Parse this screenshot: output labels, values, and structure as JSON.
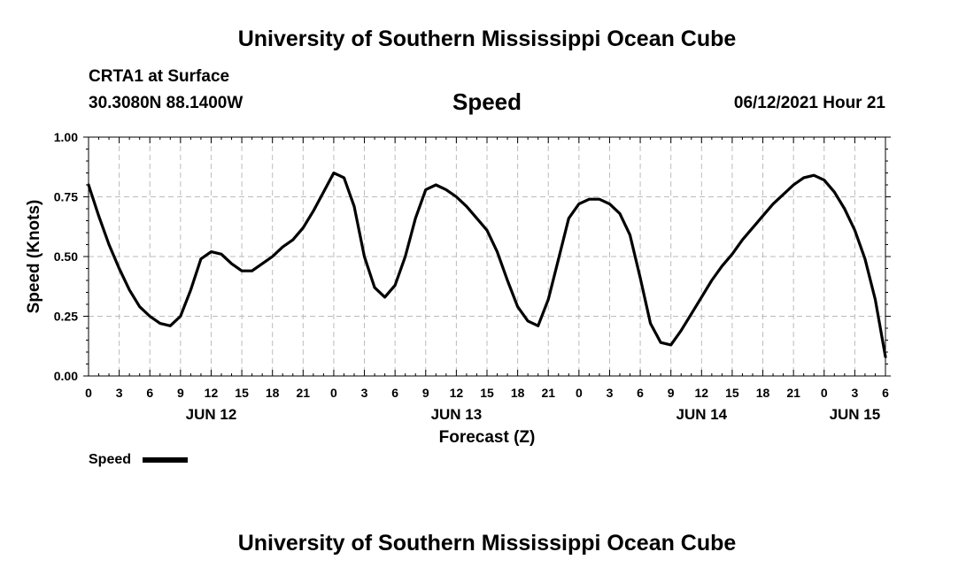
{
  "header": {
    "title": "University of Southern Mississippi Ocean Cube",
    "station": "CRTA1 at Surface",
    "coordinates": "30.3080N  88.1400W",
    "timestamp": "06/12/2021 Hour 21"
  },
  "footer": {
    "title": "University of Southern Mississippi Ocean Cube"
  },
  "chart_data": {
    "type": "line",
    "title": "Speed",
    "xlabel": "Forecast (Z)",
    "ylabel": "Speed (Knots)",
    "x_unit": "hours from 2021-06-12 00Z",
    "xlim": [
      0,
      78
    ],
    "ylim": [
      0,
      1
    ],
    "y_ticks": [
      "0.00",
      "0.25",
      "0.50",
      "0.75",
      "1.00"
    ],
    "y_tick_values": [
      0,
      0.25,
      0.5,
      0.75,
      1.0
    ],
    "x_tick_values": [
      0,
      3,
      6,
      9,
      12,
      15,
      18,
      21,
      24,
      27,
      30,
      33,
      36,
      39,
      42,
      45,
      48,
      51,
      54,
      57,
      60,
      63,
      66,
      69,
      72,
      75,
      78
    ],
    "x_ticks": [
      "0",
      "3",
      "6",
      "9",
      "12",
      "15",
      "18",
      "21",
      "0",
      "3",
      "6",
      "9",
      "12",
      "15",
      "18",
      "21",
      "0",
      "3",
      "6",
      "9",
      "12",
      "15",
      "18",
      "21",
      "0",
      "3",
      "6"
    ],
    "date_labels": [
      {
        "x": 12,
        "label": "JUN 12"
      },
      {
        "x": 36,
        "label": "JUN 13"
      },
      {
        "x": 60,
        "label": "JUN 14"
      },
      {
        "x": 75,
        "label": "JUN 15"
      }
    ],
    "grid": true,
    "legend": "bottom-left",
    "series": [
      {
        "name": "Speed",
        "color": "#000000",
        "x": [
          0,
          1,
          2,
          3,
          4,
          5,
          6,
          7,
          8,
          9,
          10,
          11,
          12,
          13,
          14,
          15,
          16,
          17,
          18,
          19,
          20,
          21,
          22,
          23,
          24,
          25,
          26,
          27,
          28,
          29,
          30,
          31,
          32,
          33,
          34,
          35,
          36,
          37,
          38,
          39,
          40,
          41,
          42,
          43,
          44,
          45,
          46,
          47,
          48,
          49,
          50,
          51,
          52,
          53,
          54,
          55,
          56,
          57,
          58,
          59,
          60,
          61,
          62,
          63,
          64,
          65,
          66,
          67,
          68,
          69,
          70,
          71,
          72,
          73,
          74,
          75,
          76,
          77,
          78
        ],
        "values": [
          0.8,
          0.67,
          0.55,
          0.45,
          0.36,
          0.29,
          0.25,
          0.22,
          0.21,
          0.25,
          0.36,
          0.49,
          0.52,
          0.51,
          0.47,
          0.44,
          0.44,
          0.47,
          0.5,
          0.54,
          0.57,
          0.62,
          0.69,
          0.77,
          0.85,
          0.83,
          0.71,
          0.5,
          0.37,
          0.33,
          0.38,
          0.5,
          0.66,
          0.78,
          0.8,
          0.78,
          0.75,
          0.71,
          0.66,
          0.61,
          0.52,
          0.4,
          0.29,
          0.23,
          0.21,
          0.32,
          0.49,
          0.66,
          0.72,
          0.74,
          0.74,
          0.72,
          0.68,
          0.59,
          0.41,
          0.22,
          0.14,
          0.13,
          0.19,
          0.26,
          0.33,
          0.4,
          0.46,
          0.51,
          0.57,
          0.62,
          0.67,
          0.72,
          0.76,
          0.8,
          0.83,
          0.84,
          0.82,
          0.77,
          0.7,
          0.61,
          0.49,
          0.32,
          0.08
        ]
      }
    ]
  }
}
